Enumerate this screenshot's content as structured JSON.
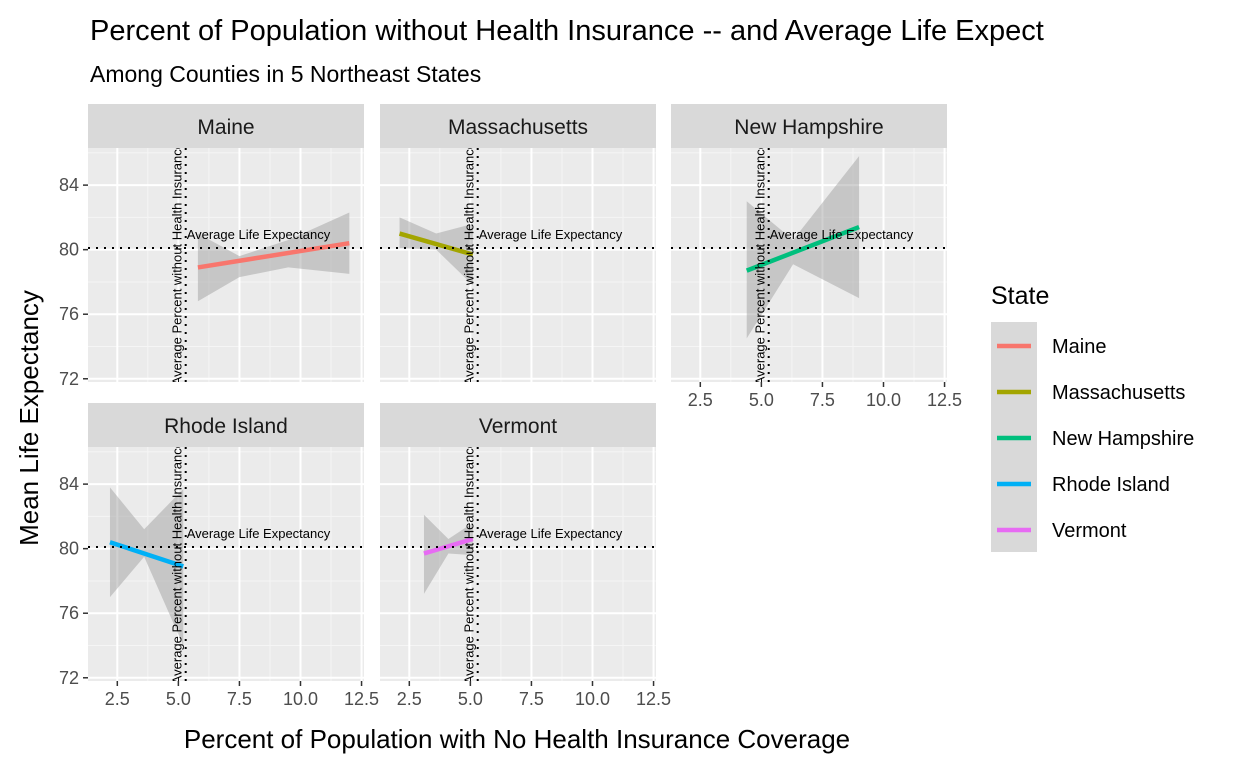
{
  "chart_data": {
    "type": "line",
    "title": "Percent of Population without Health Insurance -- and Average Life Expect",
    "subtitle": "Among Counties in 5 Northeast States",
    "xlabel": "Percent of Population with No Health Insurance Coverage",
    "ylabel": "Mean Life Expectancy",
    "xlim": [
      1.3,
      12.6
    ],
    "ylim": [
      71.8,
      86.3
    ],
    "x_ticks": [
      2.5,
      5.0,
      7.5,
      10.0,
      12.5
    ],
    "x_tick_labels": [
      "2.5",
      "5.0",
      "7.5",
      "10.0",
      "12.5"
    ],
    "y_ticks": [
      72,
      76,
      80,
      84
    ],
    "y_tick_labels": [
      "72",
      "76",
      "80",
      "84"
    ],
    "grid": true,
    "legend": {
      "title": "State",
      "position": "right"
    },
    "reference_lines": {
      "vertical_x": 5.3,
      "vertical_label": "Average Percent without Health Insurance",
      "horizontal_y": 80.1,
      "horizontal_label": "Average Life Expectancy"
    },
    "panels": [
      {
        "name": "Maine",
        "color": "#F8766D",
        "line": {
          "x": [
            5.8,
            12.0
          ],
          "y": [
            78.9,
            80.4
          ]
        },
        "band": {
          "x": [
            5.8,
            7.5,
            9.5,
            12.0
          ],
          "lower": [
            76.8,
            78.3,
            78.9,
            78.5
          ],
          "upper": [
            81.0,
            79.6,
            80.6,
            82.3
          ]
        }
      },
      {
        "name": "Massachusetts",
        "color": "#A3A500",
        "line": {
          "x": [
            2.1,
            5.1
          ],
          "y": [
            81.0,
            79.7
          ]
        },
        "band": {
          "x": [
            2.1,
            3.6,
            5.1
          ],
          "lower": [
            80.1,
            80.0,
            77.8
          ],
          "upper": [
            82.0,
            81.0,
            81.6
          ]
        }
      },
      {
        "name": "New Hampshire",
        "color": "#00BF7D",
        "line": {
          "x": [
            4.4,
            9.0
          ],
          "y": [
            78.7,
            81.4
          ]
        },
        "band": {
          "x": [
            4.4,
            6.3,
            9.0
          ],
          "lower": [
            74.5,
            79.1,
            77.0
          ],
          "upper": [
            83.0,
            80.6,
            85.8
          ]
        }
      },
      {
        "name": "Rhode Island",
        "color": "#00B0F6",
        "line": {
          "x": [
            2.2,
            5.2
          ],
          "y": [
            80.4,
            78.9
          ]
        },
        "band": {
          "x": [
            2.2,
            3.6,
            5.2
          ],
          "lower": [
            77.0,
            79.5,
            74.0
          ],
          "upper": [
            83.8,
            81.2,
            83.7
          ]
        }
      },
      {
        "name": "Vermont",
        "color": "#E76BF3",
        "line": {
          "x": [
            3.1,
            5.1
          ],
          "y": [
            79.7,
            80.6
          ]
        },
        "band": {
          "x": [
            3.1,
            4.1,
            5.1
          ],
          "lower": [
            77.2,
            79.7,
            79.6
          ],
          "upper": [
            82.1,
            80.6,
            81.6
          ]
        }
      }
    ]
  }
}
